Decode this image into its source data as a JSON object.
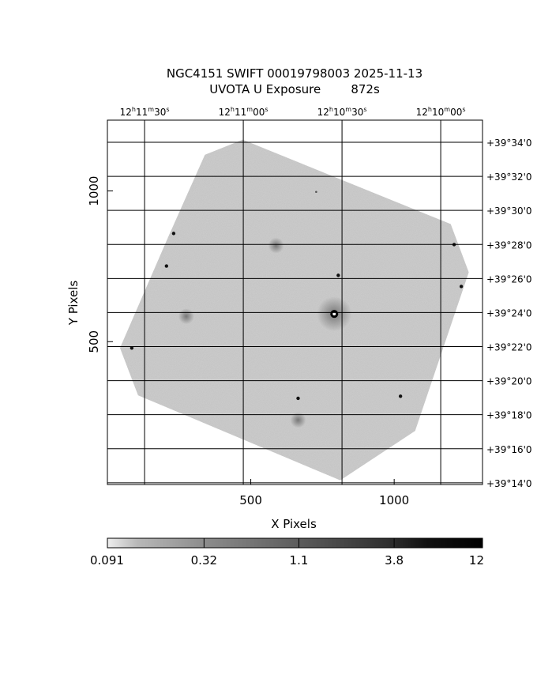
{
  "chart_data": {
    "type": "heatmap",
    "title": "NGC4151 SWIFT 00019798003 2025-11-13",
    "subtitle": "UVOTA U Exposure        872s",
    "xlabel": "X Pixels",
    "ylabel": "Y Pixels",
    "xlim": [
      0,
      1308
    ],
    "ylim": [
      26,
      1235
    ],
    "x_ticks": [
      500,
      1000
    ],
    "x_tick_labels": [
      "500",
      "1000"
    ],
    "y_ticks": [
      500,
      1000
    ],
    "y_tick_labels": [
      "500",
      "1000"
    ],
    "ra_range_seconds_from_12h": [
      701.3,
      587.3
    ],
    "ra_ticks_seconds_from_12h": [
      690,
      660,
      630,
      600
    ],
    "ra_tick_labels": [
      {
        "h": "12",
        "m": "11",
        "s": "30"
      },
      {
        "h": "12",
        "m": "11",
        "s": "00"
      },
      {
        "h": "12",
        "m": "10",
        "s": "30"
      },
      {
        "h": "12",
        "m": "10",
        "s": "00"
      }
    ],
    "dec_range_arcmin": [
      13.9,
      35.3
    ],
    "dec_ticks_arcmin": [
      34,
      32,
      30,
      28,
      26,
      24,
      22,
      20,
      18,
      16,
      14
    ],
    "dec_tick_labels": [
      "+39°34'0",
      "+39°32'0",
      "+39°30'0",
      "+39°28'0",
      "+39°26'0",
      "+39°24'0",
      "+39°22'0",
      "+39°20'0",
      "+39°18'0",
      "+39°16'0",
      "+39°14'0"
    ],
    "grid": true,
    "colormap": "gray-reversed",
    "scale": "log",
    "colorbar": {
      "range": [
        0.091,
        12
      ],
      "tick_values": [
        0.091,
        0.32,
        1.1,
        3.8,
        12
      ],
      "tick_labels": [
        "0.091",
        "0.32",
        "1.1",
        "3.8",
        "12"
      ]
    },
    "footprint_xy": [
      [
        340,
        1120
      ],
      [
        472,
        1170
      ],
      [
        1197,
        890
      ],
      [
        1260,
        730
      ],
      [
        1073,
        204
      ],
      [
        812,
        40
      ],
      [
        107,
        322
      ],
      [
        44,
        479
      ],
      [
        211,
        845
      ]
    ],
    "sources": [
      {
        "x": 791,
        "y": 592,
        "kind": "nucleus"
      },
      {
        "x": 665,
        "y": 312,
        "kind": "star"
      },
      {
        "x": 206,
        "y": 751,
        "kind": "star"
      },
      {
        "x": 231,
        "y": 859,
        "kind": "star"
      },
      {
        "x": 1209,
        "y": 822,
        "kind": "star"
      },
      {
        "x": 1234,
        "y": 683,
        "kind": "star"
      },
      {
        "x": 805,
        "y": 720,
        "kind": "star"
      },
      {
        "x": 85,
        "y": 479,
        "kind": "star"
      },
      {
        "x": 1022,
        "y": 319,
        "kind": "star"
      },
      {
        "x": 728,
        "y": 997,
        "kind": "faint"
      },
      {
        "x": 588,
        "y": 819,
        "kind": "diffuse"
      },
      {
        "x": 275,
        "y": 584,
        "kind": "diffuse"
      },
      {
        "x": 665,
        "y": 240,
        "kind": "diffuse"
      }
    ]
  }
}
